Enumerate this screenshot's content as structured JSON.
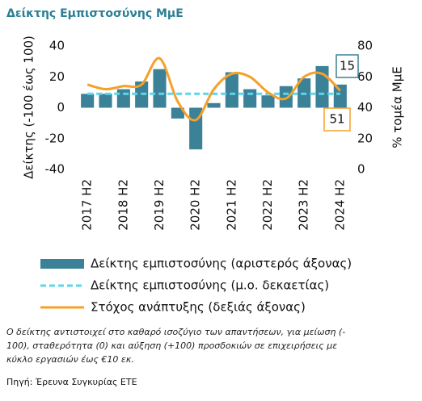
{
  "chart_data": {
    "type": "bar",
    "title": "Δείκτης Εμπιστοσύνης ΜμΕ",
    "categories": [
      "2017 H2",
      null,
      "2018 H2",
      null,
      "2019 H2",
      null,
      "2020 H2",
      null,
      "2021 H2",
      null,
      "2022 H2",
      null,
      "2023 H2",
      null,
      "2024 H2"
    ],
    "series": [
      {
        "name": "Δείκτης εμπιστοσύνης (αριστερός άξονας)",
        "type": "bar",
        "color": "#3b8197",
        "values": [
          9,
          9,
          12,
          17,
          25,
          -7,
          -27,
          3,
          23,
          12,
          8,
          14,
          19,
          27,
          15
        ]
      },
      {
        "name": "Δείκτης εμπιστοσύνης (μ.ο. δεκαετίας)",
        "type": "dashed-line",
        "color": "#5cd6ea",
        "values": [
          9,
          9,
          9,
          9,
          9,
          9,
          9,
          9,
          9,
          9,
          9,
          9,
          9,
          9,
          9
        ]
      },
      {
        "name": "Στόχος ανάπτυξης (δεξιάς άξονας)",
        "type": "line",
        "axis": "y2",
        "color": "#f5a02a",
        "values": [
          55,
          52,
          54,
          55,
          72,
          44,
          32,
          52,
          62,
          60,
          50,
          46,
          60,
          62,
          51
        ]
      }
    ],
    "ylabel": "Δείκτης (-100 έως 100)",
    "y2label": "% τομέα ΜμΕ",
    "ylim": [
      -40,
      40
    ],
    "yticks": [
      -40,
      -20,
      0,
      20,
      40
    ],
    "y2lim": [
      0,
      80
    ],
    "y2ticks": [
      0,
      20,
      40,
      60,
      80
    ],
    "grid": false,
    "notes": [
      "Ο δείκτης αντιστοιχεί στο καθαρό ισοζύγιο των απαντήσεων, για μείωση (-",
      "100), σταθερότητα (0) και αύξηση (+100) προσδοκιών σε επιχειρήσεις με",
      "κύκλο εργασιών έως €10 εκ."
    ],
    "source": "Πηγή: Έρευνα Συγκυρίας ΕΤΕ"
  }
}
